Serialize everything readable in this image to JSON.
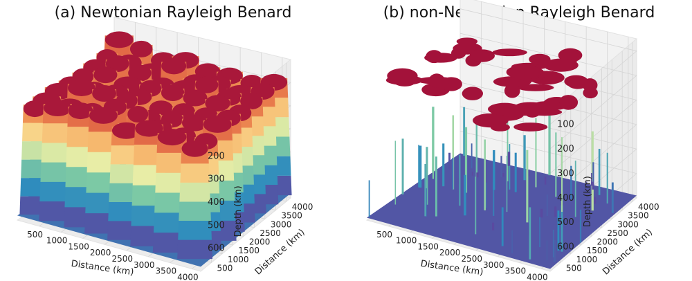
{
  "chart_data": [
    {
      "type": "surface3d",
      "title": "(a) Newtonian Rayleigh Benard",
      "xlabel": "Distance (km)",
      "ylabel": "Distance (km)",
      "zlabel": "Depth (km)",
      "x_ticks": [
        "500",
        "1000",
        "1500",
        "2000",
        "2500",
        "3000",
        "3500",
        "4000"
      ],
      "y_ticks": [
        "500",
        "1000",
        "1500",
        "2000",
        "2500",
        "3000",
        "3500",
        "4000"
      ],
      "z_ticks": [
        "200",
        "300",
        "400",
        "500",
        "600"
      ],
      "xlim": [
        0,
        4200
      ],
      "ylim": [
        0,
        4200
      ],
      "zlim": [
        100,
        700
      ],
      "z_inverted": true,
      "colormap": "Spectral",
      "surface": {
        "grid": 8,
        "peak_depth": 150,
        "base_depth": 680
      },
      "grid": true
    },
    {
      "type": "surface3d",
      "title": "(b) non-Newtonian Rayleigh Benard",
      "xlabel": "Distance (km)",
      "ylabel": "Distance (km)",
      "zlabel": "Depth (km)",
      "x_ticks": [
        "500",
        "1000",
        "1500",
        "2000",
        "2500",
        "3000",
        "3500",
        "4000"
      ],
      "y_ticks": [
        "500",
        "1000",
        "1500",
        "2000",
        "2500",
        "3000",
        "3500",
        "4000"
      ],
      "z_ticks": [
        "100",
        "200",
        "300",
        "400",
        "500",
        "600"
      ],
      "xlim": [
        0,
        4200
      ],
      "ylim": [
        0,
        4200
      ],
      "zlim": [
        50,
        700
      ],
      "z_inverted": true,
      "colormap": "Spectral",
      "surface": {
        "cap_depth": 130,
        "base_depth": 690
      },
      "grid": true
    }
  ],
  "colors": {
    "top": "#a3123a",
    "upper": "#d7453a",
    "mid_upper": "#f4a25a",
    "mid": "#fbf3a6",
    "mid_lower": "#7fcba4",
    "lower": "#2f8cbd",
    "bottom": "#5a4aa0",
    "pane": "#f2f2f2",
    "gridline": "#d4d4d4"
  }
}
